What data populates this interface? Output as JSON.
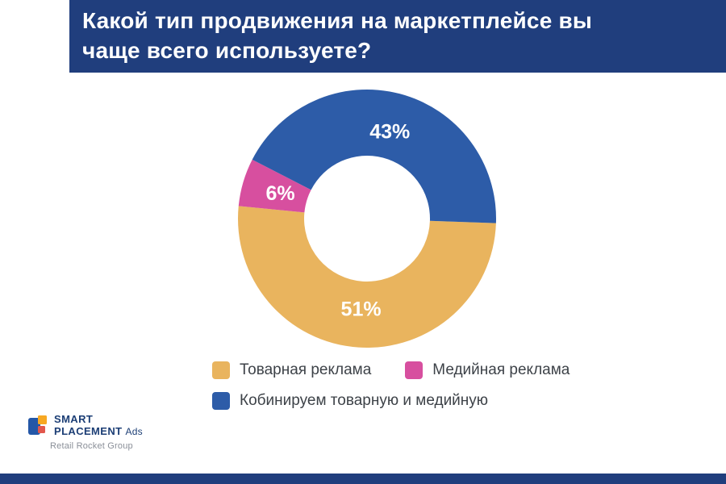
{
  "header": {
    "title": "Какой тип продвижения на маркетплейсе вы чаще всего используете?"
  },
  "chart_data": {
    "type": "pie",
    "subtype": "donut",
    "title": "Какой тип продвижения на маркетплейсе вы чаще всего используете?",
    "unit": "%",
    "start_angle_deg": 92,
    "direction": "clockwise",
    "legend_position": "bottom",
    "data_label_color": "#ffffff",
    "segments": [
      {
        "label": "Товарная реклама",
        "value": 51,
        "data_label": "51%",
        "color": "#e9b45e"
      },
      {
        "label": "Медийная реклама",
        "value": 6,
        "data_label": "6%",
        "color": "#d74f9f"
      },
      {
        "label": "Кобинируем товарную и медийную",
        "value": 43,
        "data_label": "43%",
        "color": "#2d5ca8"
      }
    ]
  },
  "logo": {
    "line1": "SMART",
    "line2": "PLACEMENT",
    "suffix": "Ads",
    "subtitle": "Retail Rocket Group"
  },
  "colors": {
    "banner": "#203e7d",
    "footer": "#203e7d",
    "background": "#ffffff",
    "legend_text": "#3d4248"
  }
}
